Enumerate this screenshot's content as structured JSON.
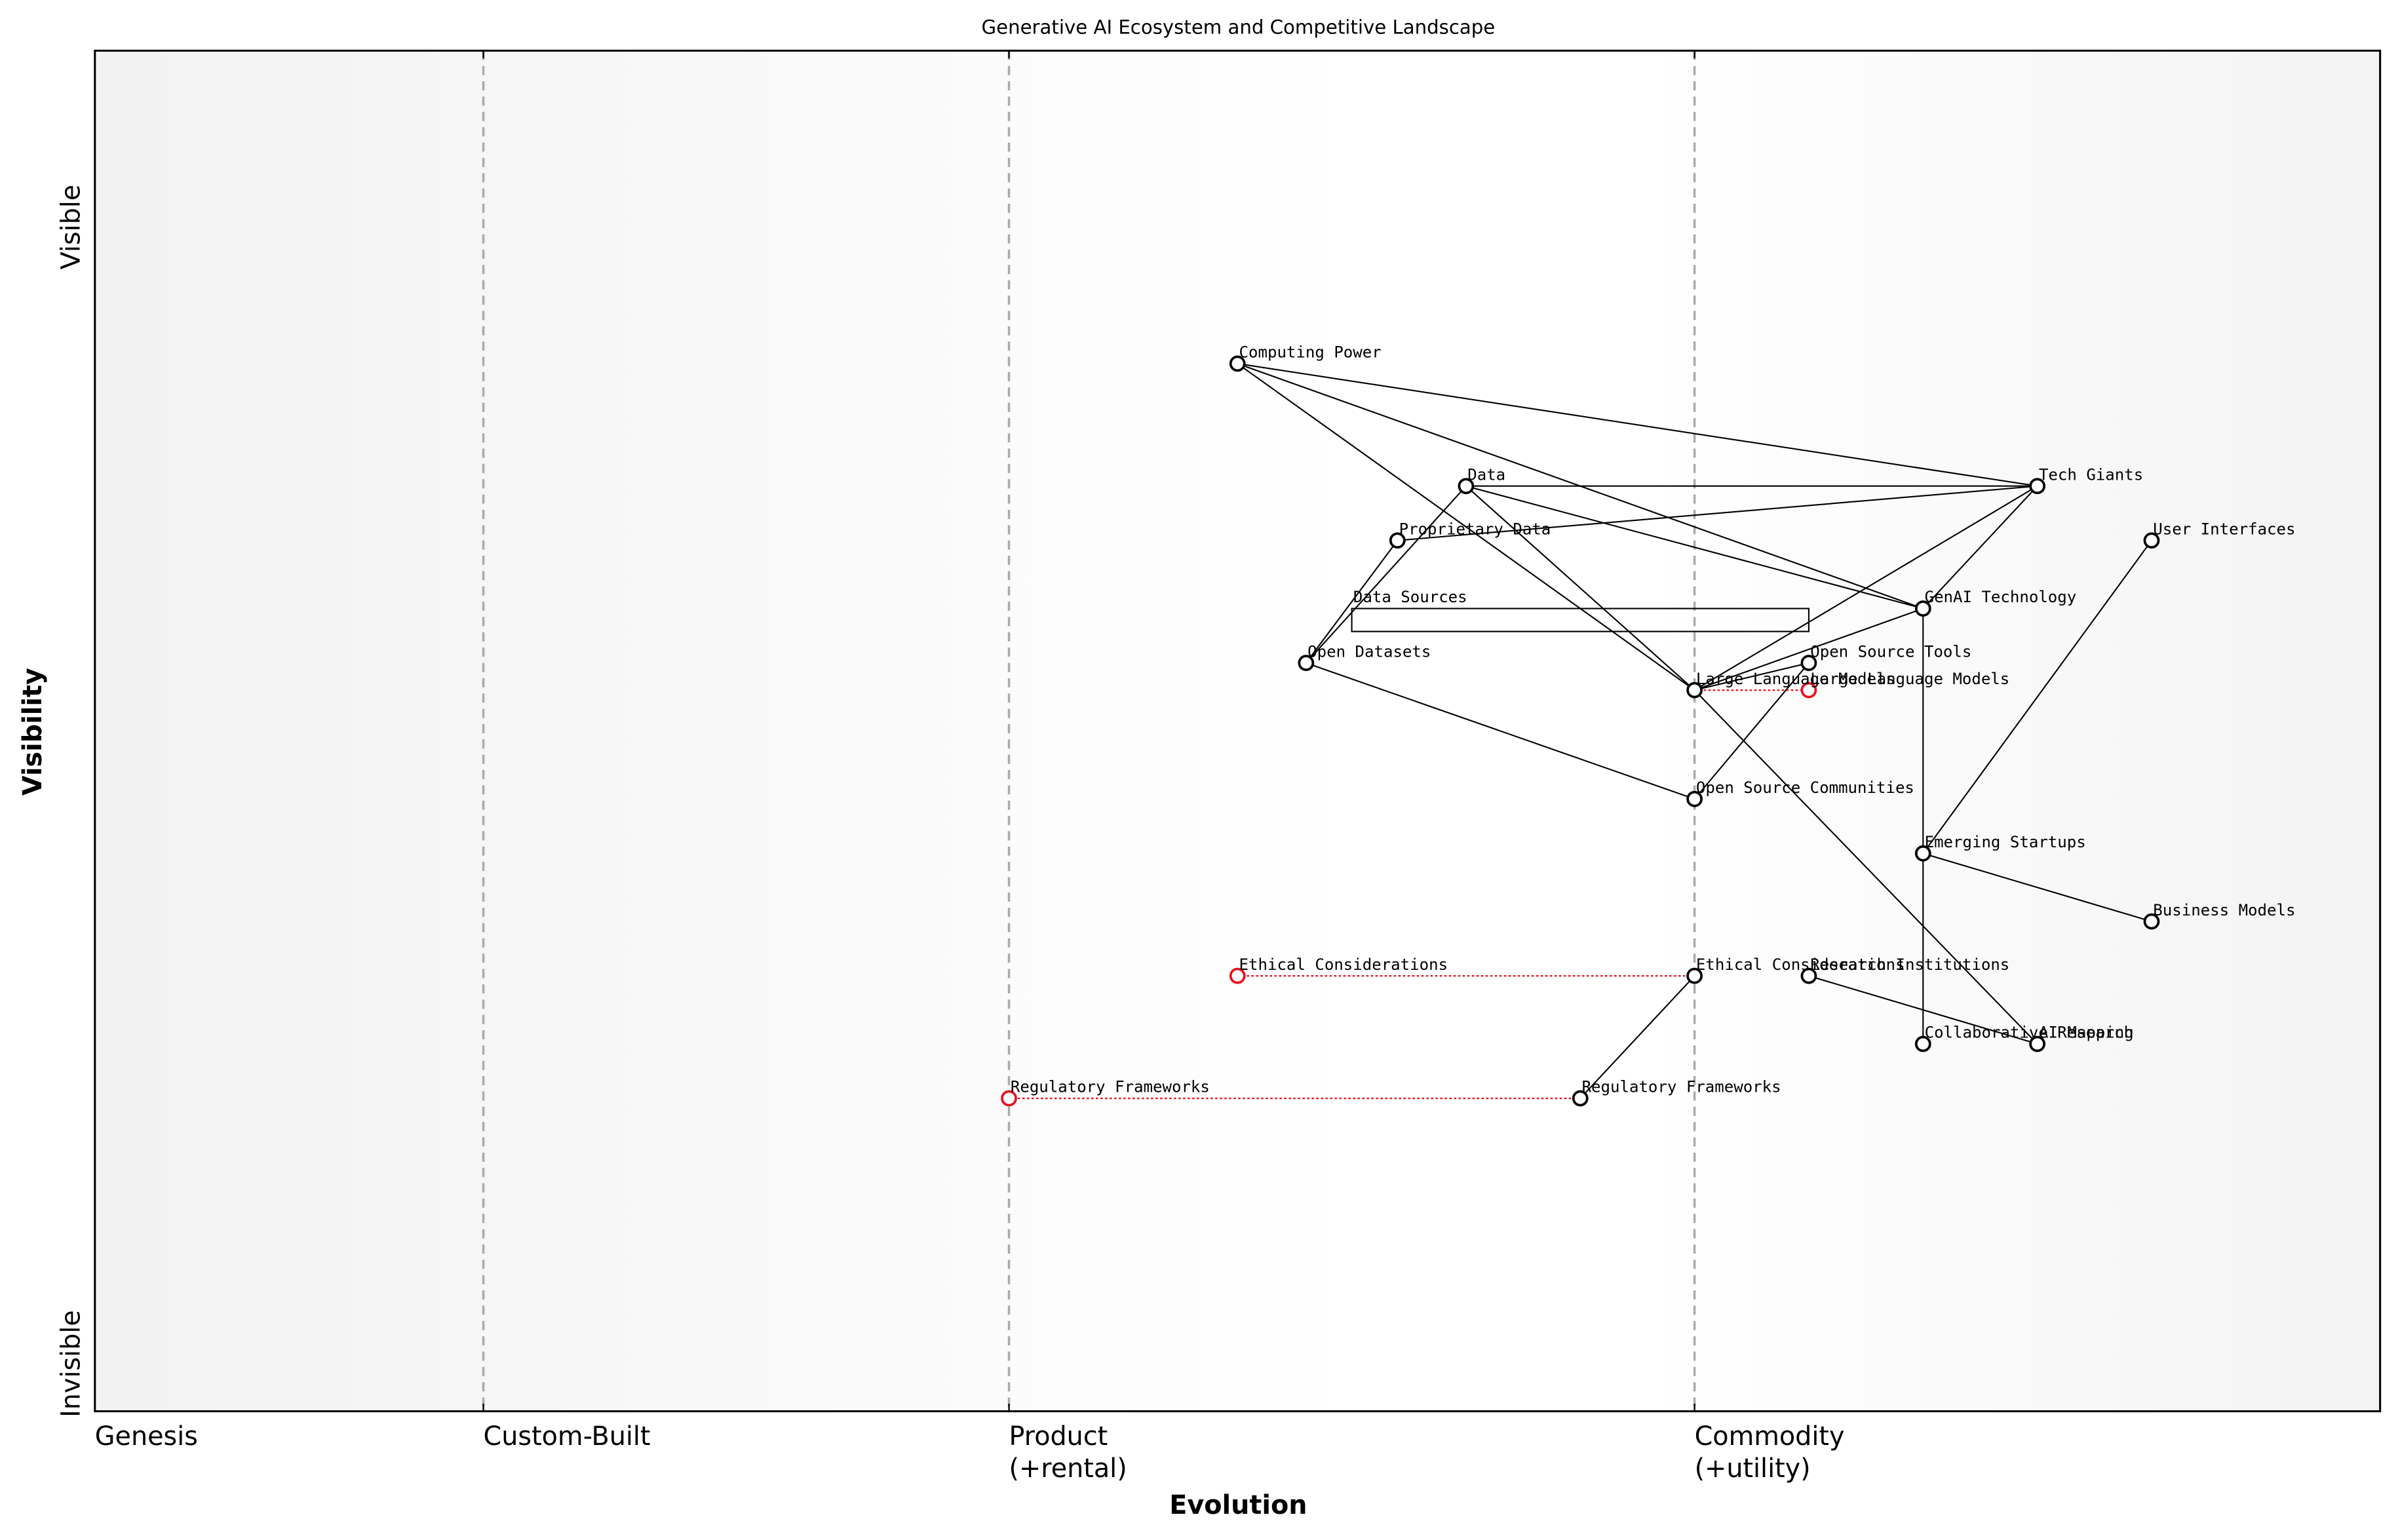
{
  "chart_data": {
    "type": "wardley",
    "title": "Generative AI Ecosystem and Competitive Landscape",
    "x_label": "Evolution",
    "y_label": "Visibility",
    "visibility_labels": {
      "top": "Visible",
      "bottom": "Invisible"
    },
    "xlim": [
      0,
      1
    ],
    "ylim": [
      0,
      1
    ],
    "xticks": [
      {
        "value": 0,
        "label": "Genesis"
      },
      {
        "value": 0.17,
        "label": "Custom-Built"
      },
      {
        "value": 0.4,
        "label": "Product\n(+rental)"
      },
      {
        "value": 0.7,
        "label": "Commodity\n(+utility)"
      }
    ],
    "components": [
      {
        "name": "Computing Power",
        "evolution": 0.5,
        "visibility": 0.77
      },
      {
        "name": "Data",
        "evolution": 0.6,
        "visibility": 0.68
      },
      {
        "name": "Tech Giants",
        "evolution": 0.85,
        "visibility": 0.68
      },
      {
        "name": "Proprietary Data",
        "evolution": 0.57,
        "visibility": 0.64
      },
      {
        "name": "User Interfaces",
        "evolution": 0.9,
        "visibility": 0.64
      },
      {
        "name": "GenAI Technology",
        "evolution": 0.8,
        "visibility": 0.59
      },
      {
        "name": "Open Datasets",
        "evolution": 0.53,
        "visibility": 0.55
      },
      {
        "name": "Open Source Tools",
        "evolution": 0.75,
        "visibility": 0.55
      },
      {
        "name": "Large Language Models",
        "evolution": 0.7,
        "visibility": 0.53
      },
      {
        "name": "Open Source Communities",
        "evolution": 0.7,
        "visibility": 0.45
      },
      {
        "name": "Emerging Startups",
        "evolution": 0.8,
        "visibility": 0.41
      },
      {
        "name": "Business Models",
        "evolution": 0.9,
        "visibility": 0.36
      },
      {
        "name": "Ethical Considerations",
        "evolution": 0.7,
        "visibility": 0.32
      },
      {
        "name": "Research Institutions",
        "evolution": 0.75,
        "visibility": 0.32
      },
      {
        "name": "Collaborative Research",
        "evolution": 0.8,
        "visibility": 0.27
      },
      {
        "name": "AI Mapping",
        "evolution": 0.85,
        "visibility": 0.27
      },
      {
        "name": "Regulatory Frameworks",
        "evolution": 0.65,
        "visibility": 0.23
      }
    ],
    "pipelines": [
      {
        "name": "Data Sources",
        "visibility": 0.59,
        "start": 0.55,
        "end": 0.75
      }
    ],
    "links": [
      [
        "Computing Power",
        "Tech Giants"
      ],
      [
        "Computing Power",
        "GenAI Technology"
      ],
      [
        "Computing Power",
        "Large Language Models"
      ],
      [
        "Data",
        "Tech Giants"
      ],
      [
        "Data",
        "GenAI Technology"
      ],
      [
        "Data",
        "Large Language Models"
      ],
      [
        "Data",
        "Open Datasets"
      ],
      [
        "Proprietary Data",
        "Open Datasets"
      ],
      [
        "Proprietary Data",
        "Tech Giants"
      ],
      [
        "Open Datasets",
        "Open Source Communities"
      ],
      [
        "Tech Giants",
        "GenAI Technology"
      ],
      [
        "Tech Giants",
        "Large Language Models"
      ],
      [
        "GenAI Technology",
        "Large Language Models"
      ],
      [
        "GenAI Technology",
        "Emerging Startups"
      ],
      [
        "Emerging Startups",
        "Collaborative Research"
      ],
      [
        "Emerging Startups",
        "Business Models"
      ],
      [
        "User Interfaces",
        "Emerging Startups"
      ],
      [
        "Open Source Tools",
        "Open Source Communities"
      ],
      [
        "Open Source Tools",
        "Large Language Models"
      ],
      [
        "Large Language Models",
        "AI Mapping"
      ],
      [
        "Research Institutions",
        "AI Mapping"
      ],
      [
        "Ethical Considerations",
        "Regulatory Frameworks"
      ]
    ],
    "evolve": [
      {
        "name": "Large Language Models",
        "to": 0.75,
        "color": "#e8141e"
      },
      {
        "name": "Ethical Considerations",
        "to": 0.5,
        "color": "#e8141e"
      },
      {
        "name": "Regulatory Frameworks",
        "to": 0.4,
        "color": "#e8141e"
      }
    ]
  }
}
